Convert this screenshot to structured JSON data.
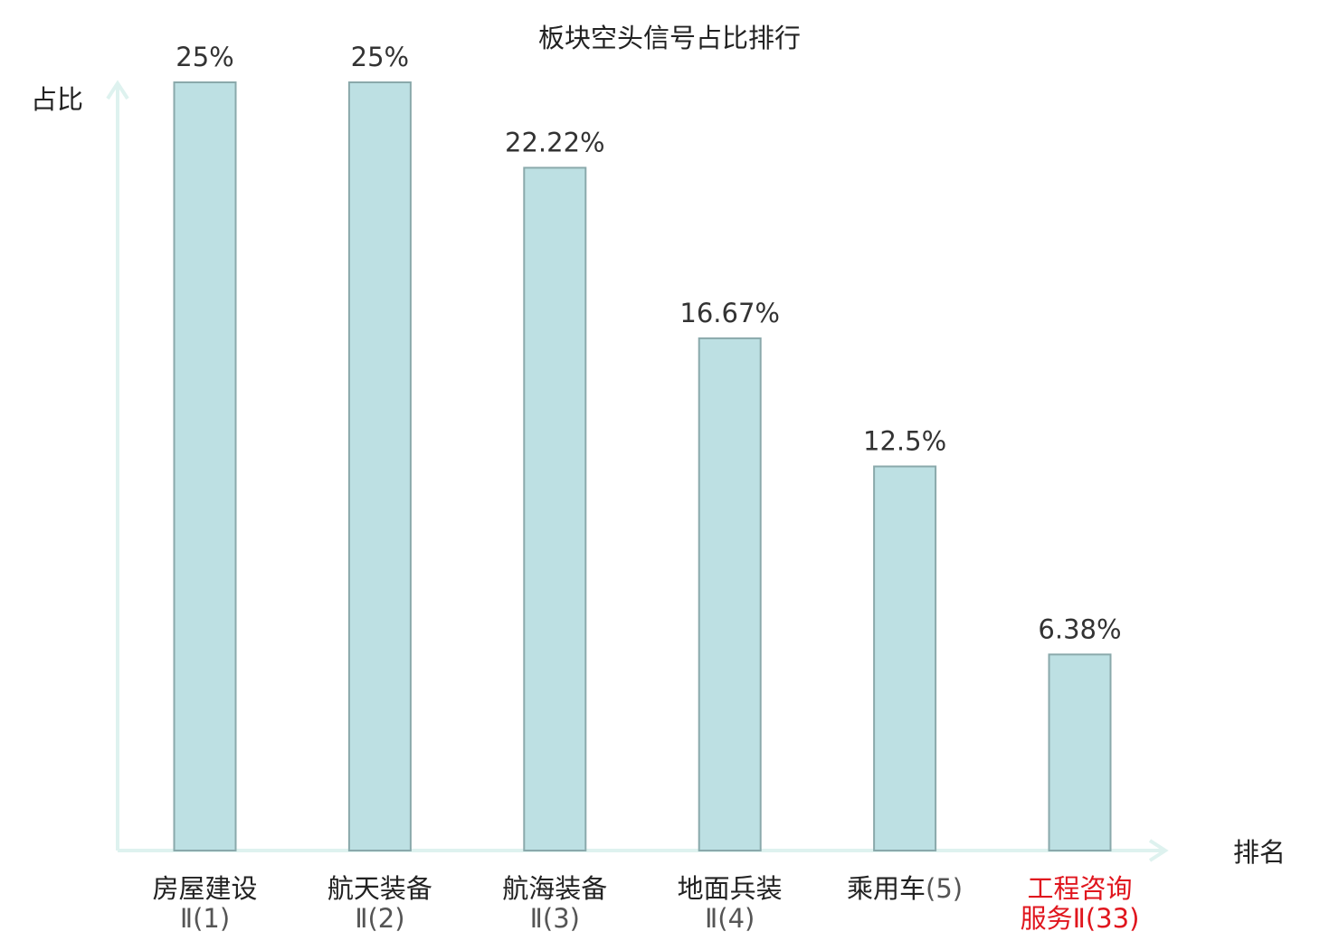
{
  "chart_data": {
    "type": "bar",
    "title": "板块空头信号占比排行",
    "xlabel": "排名",
    "ylabel": "占比",
    "ylim": [
      0,
      25
    ],
    "grid": false,
    "categories": [
      {
        "main": "房屋建设",
        "sub": "Ⅱ(1)"
      },
      {
        "main": "航天装备",
        "sub": "Ⅱ(2)"
      },
      {
        "main": "航海装备",
        "sub": "Ⅱ(3)"
      },
      {
        "main": "地面兵装",
        "sub": "Ⅱ(4)"
      },
      {
        "main": "乘用车",
        "sub": "(5)"
      },
      {
        "main": "工程咨询",
        "sub": "服务Ⅱ(33)"
      }
    ],
    "values": [
      25,
      25,
      22.22,
      16.67,
      12.5,
      6.38
    ],
    "value_labels": [
      "25%",
      "25%",
      "22.22%",
      "16.67%",
      "12.5%",
      "6.38%"
    ],
    "highlight_index": 5,
    "colors": {
      "bar_fill": "#bde0e3",
      "bar_stroke": "#8aa9ab",
      "axis": "#def2ef",
      "highlight_text": "#e0161e"
    }
  }
}
